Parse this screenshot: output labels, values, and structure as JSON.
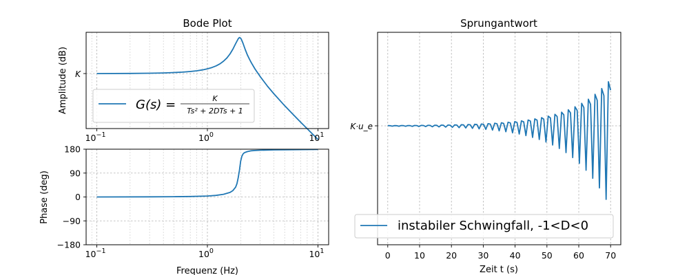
{
  "colors": {
    "series": "#1f77b4",
    "legend_border": "#cccccc"
  },
  "chart_data": [
    {
      "id": "amplitude",
      "type": "line",
      "title": "Bode Plot",
      "xlabel": "",
      "ylabel": "Amplitude (dB)",
      "xscale": "log",
      "xlim": [
        0.08,
        12.5
      ],
      "xticks": [
        {
          "v": 0.1,
          "label": "10^-1"
        },
        {
          "v": 1,
          "label": "10^0"
        },
        {
          "v": 10,
          "label": "10^1"
        }
      ],
      "ytick_label": "K",
      "grid": true,
      "legend": {
        "placement": "lower-left",
        "label_prefix": "G(s) = ",
        "label_num": "K",
        "label_den": "Ts² + 2DTs + 1"
      },
      "series": [
        {
          "x": [
            0.1,
            0.2,
            0.3,
            0.4,
            0.5,
            0.6,
            0.7,
            0.8,
            0.9,
            1.0,
            1.1,
            1.2,
            1.3,
            1.4,
            1.5,
            1.6,
            1.7,
            1.8,
            1.9,
            1.95,
            2.0,
            2.05,
            2.1,
            2.2,
            2.3,
            2.4,
            2.5,
            2.7,
            3.0,
            3.5,
            4.0,
            5.0,
            6.0,
            7.0,
            8.0,
            9.0,
            10.0
          ],
          "y": [
            0.0,
            0.09,
            0.2,
            0.36,
            0.58,
            0.85,
            1.2,
            1.62,
            2.14,
            2.77,
            3.53,
            4.5,
            5.7,
            7.2,
            9.1,
            11.4,
            14.2,
            17.4,
            20.2,
            21.0,
            20.6,
            19.3,
            17.6,
            14.0,
            10.9,
            8.4,
            6.3,
            2.6,
            -1.7,
            -7.4,
            -11.8,
            -18.7,
            -24.0,
            -28.4,
            -32.1,
            -35.4,
            -38.3
          ]
        }
      ]
    },
    {
      "id": "phase",
      "type": "line",
      "title": "",
      "xlabel": "Frequenz (Hz)",
      "ylabel": "Phase (deg)",
      "xscale": "log",
      "xlim": [
        0.08,
        12.5
      ],
      "ylim": [
        -180,
        180
      ],
      "xticks": [
        {
          "v": 0.1,
          "label": "10^-1"
        },
        {
          "v": 1,
          "label": "10^0"
        },
        {
          "v": 10,
          "label": "10^1"
        }
      ],
      "yticks": [
        180,
        90,
        0,
        -90,
        -180
      ],
      "grid": true,
      "series": [
        {
          "x": [
            0.1,
            0.3,
            0.5,
            0.7,
            1.0,
            1.2,
            1.4,
            1.6,
            1.7,
            1.8,
            1.85,
            1.9,
            1.95,
            2.0,
            2.05,
            2.1,
            2.15,
            2.2,
            2.3,
            2.5,
            2.7,
            3.0,
            4.0,
            5.0,
            7.0,
            10.0
          ],
          "y": [
            0,
            0.5,
            1.0,
            1.8,
            3.5,
            6,
            10,
            17,
            24,
            37,
            50,
            72,
            100,
            135,
            153,
            162,
            166,
            168,
            171,
            174,
            175,
            176,
            177.5,
            178,
            178.5,
            179
          ]
        }
      ]
    },
    {
      "id": "step",
      "type": "line",
      "title": "Sprungantwort",
      "xlabel": "Zeit t (s)",
      "ylabel": "",
      "xlim": [
        -3.2,
        73.2
      ],
      "xticks": [
        0,
        10,
        20,
        30,
        40,
        50,
        60,
        70
      ],
      "ytick_label": "K·u_e",
      "grid": true,
      "legend": {
        "placement": "lower-center",
        "label": "instabiler Schwingfall, -1<D<0"
      },
      "series": [
        {
          "t_start": 0,
          "t_end": 70,
          "growth_rate": 0.08,
          "period": 2.1,
          "envelope_at_end": 4.4,
          "steady_value": 0
        }
      ]
    }
  ]
}
